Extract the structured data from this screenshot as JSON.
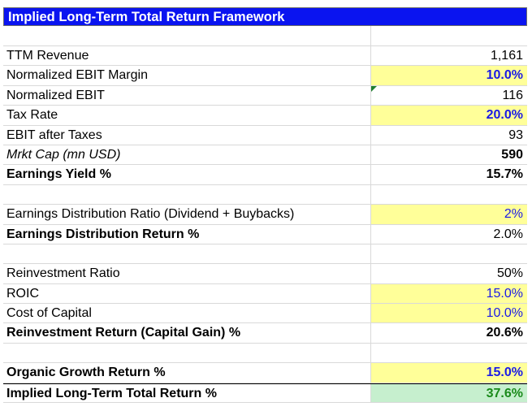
{
  "title": "Implied Long-Term Total Return Framework",
  "rows": [
    {
      "label": "",
      "value": ""
    },
    {
      "label": "TTM Revenue",
      "value": "1,161"
    },
    {
      "label": "Normalized EBIT Margin",
      "value": "10.0%"
    },
    {
      "label": "Normalized EBIT",
      "value": "116"
    },
    {
      "label": "Tax Rate",
      "value": "20.0%"
    },
    {
      "label": "EBIT after Taxes",
      "value": "93"
    },
    {
      "label": "Mrkt Cap (mn USD)",
      "value": "590"
    },
    {
      "label": "Earnings Yield %",
      "value": "15.7%"
    },
    {
      "label": "",
      "value": ""
    },
    {
      "label": "Earnings Distribution Ratio (Dividend + Buybacks)",
      "value": "2%"
    },
    {
      "label": "Earnings Distribution Return %",
      "value": "2.0%"
    },
    {
      "label": "",
      "value": ""
    },
    {
      "label": "Reinvestment Ratio",
      "value": "50%"
    },
    {
      "label": "ROIC",
      "value": "15.0%"
    },
    {
      "label": "Cost of Capital",
      "value": "10.0%"
    },
    {
      "label": "Reinvestment Return (Capital Gain) %",
      "value": "20.6%"
    },
    {
      "label": "",
      "value": ""
    },
    {
      "label": "Organic Growth Return %",
      "value": "15.0%"
    },
    {
      "label": "Implied Long-Term Total Return %",
      "value": "37.6%"
    }
  ],
  "colors": {
    "header_bg": "#0a14f0",
    "input_fill": "#ffff99",
    "input_text": "#1a1ae6",
    "total_fill": "#c6efce",
    "total_text": "#1a8a1a",
    "comment_marker": "#1e7e2e"
  }
}
